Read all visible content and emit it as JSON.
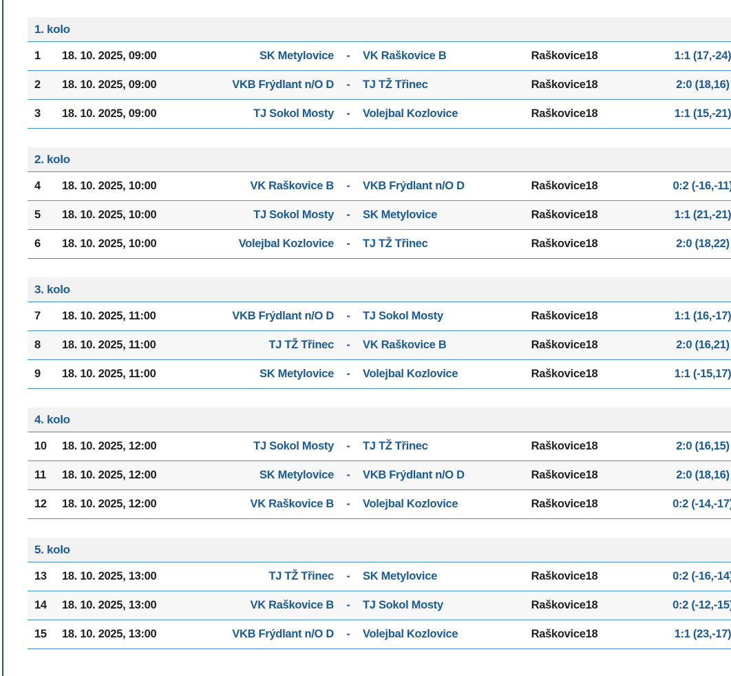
{
  "page": {
    "language": "cs",
    "colors": {
      "link_blue": "#1a5a96",
      "separator_line_blue": "#4292d6",
      "left_edge_border_navy": "#254f80",
      "header_row_bg": "#f2f2f2",
      "alt_row_bg": "#f7f7f7",
      "text_dark": "#1f1f1f"
    }
  },
  "rounds": [
    {
      "label": "1. kolo",
      "matches": [
        {
          "num": "1",
          "datetime": "18. 10. 2025, 09:00",
          "home": "SK Metylovice",
          "separator": "-",
          "away": "VK Raškovice B",
          "venue": "Raškovice18",
          "score": "1:1 (17,-24)"
        },
        {
          "num": "2",
          "datetime": "18. 10. 2025, 09:00",
          "home": "VKB Frýdlant n/O D",
          "separator": "-",
          "away": "TJ TŽ Třinec",
          "venue": "Raškovice18",
          "score": "2:0 (18,16)"
        },
        {
          "num": "3",
          "datetime": "18. 10. 2025, 09:00",
          "home": "TJ Sokol Mosty",
          "separator": "-",
          "away": "Volejbal Kozlovice",
          "venue": "Raškovice18",
          "score": "1:1 (15,-21)"
        }
      ]
    },
    {
      "label": "2. kolo",
      "matches": [
        {
          "num": "4",
          "datetime": "18. 10. 2025, 10:00",
          "home": "VK Raškovice B",
          "separator": "-",
          "away": "VKB Frýdlant n/O D",
          "venue": "Raškovice18",
          "score": "0:2 (-16,-11)"
        },
        {
          "num": "5",
          "datetime": "18. 10. 2025, 10:00",
          "home": "TJ Sokol Mosty",
          "separator": "-",
          "away": "SK Metylovice",
          "venue": "Raškovice18",
          "score": "1:1 (21,-21)"
        },
        {
          "num": "6",
          "datetime": "18. 10. 2025, 10:00",
          "home": "Volejbal Kozlovice",
          "separator": "-",
          "away": "TJ TŽ Třinec",
          "venue": "Raškovice18",
          "score": "2:0 (18,22)"
        }
      ]
    },
    {
      "label": "3. kolo",
      "matches": [
        {
          "num": "7",
          "datetime": "18. 10. 2025, 11:00",
          "home": "VKB Frýdlant n/O D",
          "separator": "-",
          "away": "TJ Sokol Mosty",
          "venue": "Raškovice18",
          "score": "1:1 (16,-17)"
        },
        {
          "num": "8",
          "datetime": "18. 10. 2025, 11:00",
          "home": "TJ TŽ Třinec",
          "separator": "-",
          "away": "VK Raškovice B",
          "venue": "Raškovice18",
          "score": "2:0 (16,21)"
        },
        {
          "num": "9",
          "datetime": "18. 10. 2025, 11:00",
          "home": "SK Metylovice",
          "separator": "-",
          "away": "Volejbal Kozlovice",
          "venue": "Raškovice18",
          "score": "1:1 (-15,17)"
        }
      ]
    },
    {
      "label": "4. kolo",
      "matches": [
        {
          "num": "10",
          "datetime": "18. 10. 2025, 12:00",
          "home": "TJ Sokol Mosty",
          "separator": "-",
          "away": "TJ TŽ Třinec",
          "venue": "Raškovice18",
          "score": "2:0 (16,15)"
        },
        {
          "num": "11",
          "datetime": "18. 10. 2025, 12:00",
          "home": "SK Metylovice",
          "separator": "-",
          "away": "VKB Frýdlant n/O D",
          "venue": "Raškovice18",
          "score": "2:0 (18,16)"
        },
        {
          "num": "12",
          "datetime": "18. 10. 2025, 12:00",
          "home": "VK Raškovice B",
          "separator": "-",
          "away": "Volejbal Kozlovice",
          "venue": "Raškovice18",
          "score": "0:2 (-14,-17)"
        }
      ]
    },
    {
      "label": "5. kolo",
      "matches": [
        {
          "num": "13",
          "datetime": "18. 10. 2025, 13:00",
          "home": "TJ TŽ Třinec",
          "separator": "-",
          "away": "SK Metylovice",
          "venue": "Raškovice18",
          "score": "0:2 (-16,-14)"
        },
        {
          "num": "14",
          "datetime": "18. 10. 2025, 13:00",
          "home": "VK Raškovice B",
          "separator": "-",
          "away": "TJ Sokol Mosty",
          "venue": "Raškovice18",
          "score": "0:2 (-12,-15)"
        },
        {
          "num": "15",
          "datetime": "18. 10. 2025, 13:00",
          "home": "VKB Frýdlant n/O D",
          "separator": "-",
          "away": "Volejbal Kozlovice",
          "venue": "Raškovice18",
          "score": "1:1 (23,-17)"
        }
      ]
    }
  ]
}
